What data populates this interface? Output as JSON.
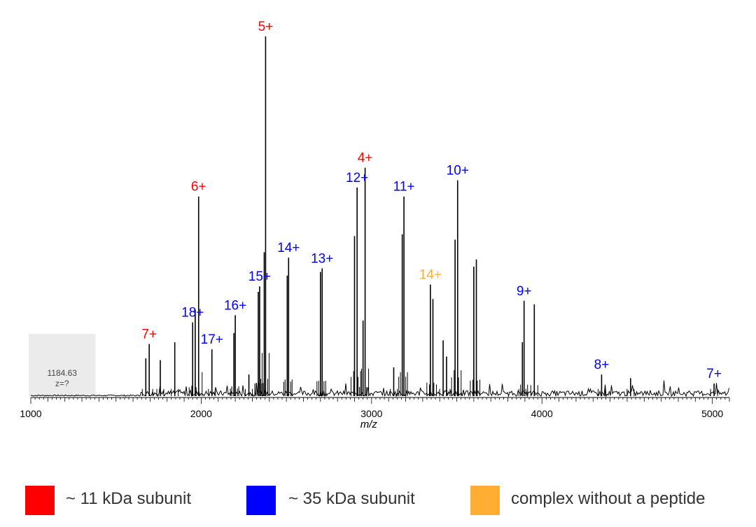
{
  "chart_data": {
    "type": "line",
    "title": "",
    "xlabel": "m/z",
    "ylabel": "",
    "xlim": [
      1000,
      5100
    ],
    "ylim": [
      0,
      100
    ],
    "x_ticks": [
      1000,
      2000,
      3000,
      4000,
      5000
    ],
    "grid": false,
    "baseline_start": 1640,
    "baseline_level": 1.5,
    "noise_region": [
      1000,
      1380
    ],
    "colors": {
      "small_subunit": "#ff0000",
      "large_subunit": "#0000ff",
      "complex": "#ffad33"
    },
    "peaks": [
      {
        "mz": 1675,
        "intensity": 10.5
      },
      {
        "mz": 1695,
        "intensity": 14.5
      },
      {
        "mz": 1760,
        "intensity": 10
      },
      {
        "mz": 1845,
        "intensity": 15
      },
      {
        "mz": 1950,
        "intensity": 20.5
      },
      {
        "mz": 1965,
        "intensity": 24
      },
      {
        "mz": 1985,
        "intensity": 55.5
      },
      {
        "mz": 2063,
        "intensity": 13
      },
      {
        "mz": 2192,
        "intensity": 17.5
      },
      {
        "mz": 2200,
        "intensity": 22.5
      },
      {
        "mz": 2280,
        "intensity": 6
      },
      {
        "mz": 2335,
        "intensity": 29
      },
      {
        "mz": 2343,
        "intensity": 30.5
      },
      {
        "mz": 2370,
        "intensity": 40
      },
      {
        "mz": 2378,
        "intensity": 100
      },
      {
        "mz": 2505,
        "intensity": 33.5
      },
      {
        "mz": 2513,
        "intensity": 38.5
      },
      {
        "mz": 2700,
        "intensity": 34.5
      },
      {
        "mz": 2710,
        "intensity": 35.5
      },
      {
        "mz": 2900,
        "intensity": 44.5
      },
      {
        "mz": 2915,
        "intensity": 58
      },
      {
        "mz": 2950,
        "intensity": 21
      },
      {
        "mz": 2962,
        "intensity": 63.5
      },
      {
        "mz": 3130,
        "intensity": 8
      },
      {
        "mz": 3180,
        "intensity": 45
      },
      {
        "mz": 3190,
        "intensity": 55.5
      },
      {
        "mz": 3345,
        "intensity": 31
      },
      {
        "mz": 3360,
        "intensity": 27
      },
      {
        "mz": 3420,
        "intensity": 15.5
      },
      {
        "mz": 3440,
        "intensity": 11
      },
      {
        "mz": 3490,
        "intensity": 43.5
      },
      {
        "mz": 3505,
        "intensity": 60
      },
      {
        "mz": 3600,
        "intensity": 36
      },
      {
        "mz": 3615,
        "intensity": 38
      },
      {
        "mz": 3885,
        "intensity": 15
      },
      {
        "mz": 3895,
        "intensity": 26.5
      },
      {
        "mz": 3955,
        "intensity": 25.5
      },
      {
        "mz": 4350,
        "intensity": 6
      },
      {
        "mz": 4520,
        "intensity": 5
      },
      {
        "mz": 5010,
        "intensity": 3.5
      }
    ],
    "peak_labels": [
      {
        "text": "7+",
        "mz": 1695,
        "intensity": 14.5,
        "group": "small_subunit"
      },
      {
        "text": "18+",
        "mz": 1950,
        "intensity": 20.5,
        "group": "large_subunit"
      },
      {
        "text": "6+",
        "mz": 1985,
        "intensity": 55.5,
        "group": "small_subunit"
      },
      {
        "text": "17+",
        "mz": 2063,
        "intensity": 13,
        "group": "large_subunit"
      },
      {
        "text": "16+",
        "mz": 2200,
        "intensity": 22.5,
        "group": "large_subunit"
      },
      {
        "text": "15+",
        "mz": 2343,
        "intensity": 30.5,
        "group": "large_subunit"
      },
      {
        "text": "5+",
        "mz": 2378,
        "intensity": 100,
        "group": "small_subunit"
      },
      {
        "text": "14+",
        "mz": 2513,
        "intensity": 38.5,
        "group": "large_subunit"
      },
      {
        "text": "13+",
        "mz": 2710,
        "intensity": 35.5,
        "group": "large_subunit"
      },
      {
        "text": "12+",
        "mz": 2915,
        "intensity": 58,
        "group": "large_subunit"
      },
      {
        "text": "4+",
        "mz": 2962,
        "intensity": 63.5,
        "group": "small_subunit"
      },
      {
        "text": "11+",
        "mz": 3190,
        "intensity": 55.5,
        "group": "large_subunit"
      },
      {
        "text": "14+",
        "mz": 3345,
        "intensity": 31,
        "group": "complex"
      },
      {
        "text": "10+",
        "mz": 3505,
        "intensity": 60,
        "group": "large_subunit"
      },
      {
        "text": "9+",
        "mz": 3895,
        "intensity": 26.5,
        "group": "large_subunit"
      },
      {
        "text": "8+",
        "mz": 4350,
        "intensity": 6,
        "group": "large_subunit"
      },
      {
        "text": "7+",
        "mz": 5010,
        "intensity": 3.5,
        "group": "large_subunit"
      }
    ],
    "noise_annotation": {
      "value": "1184.63",
      "charge": "z=?"
    }
  },
  "legend": [
    {
      "label": "~ 11 kDa subunit",
      "color": "#ff0000"
    },
    {
      "label": "~ 35 kDa subunit",
      "color": "#0000ff"
    },
    {
      "label": "complex without a peptide",
      "color": "#ffad33"
    }
  ]
}
